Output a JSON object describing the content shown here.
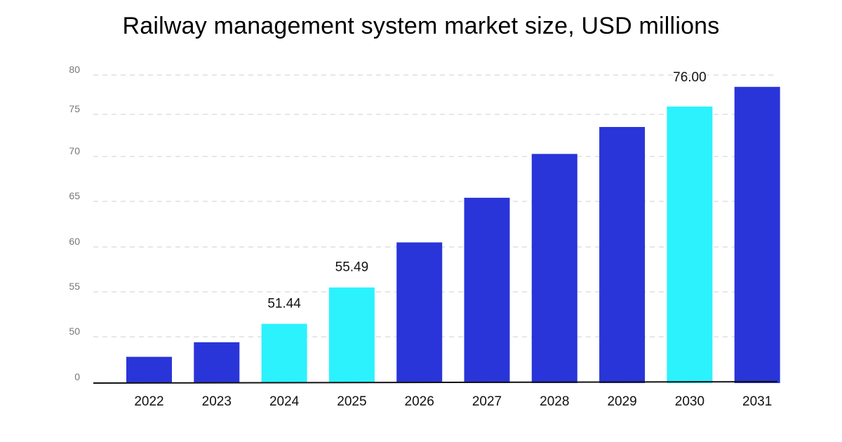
{
  "chart_data": {
    "type": "bar",
    "title": "Railway management system market size, USD millions",
    "categories": [
      "2022",
      "2023",
      "2024",
      "2025",
      "2026",
      "2027",
      "2028",
      "2029",
      "2030",
      "2031"
    ],
    "values": [
      47.8,
      49.4,
      51.44,
      55.49,
      60.5,
      65.4,
      70.3,
      73.5,
      76.0,
      78.5
    ],
    "data_labels": {
      "2024": "51.44",
      "2025": "55.49",
      "2030": "76.00"
    },
    "highlighted": [
      "2024",
      "2025",
      "2030"
    ],
    "y_ticks": [
      "0",
      "50",
      "55",
      "60",
      "65",
      "70",
      "75",
      "80"
    ],
    "ylim": [
      0,
      80
    ],
    "y_axis_break": "between 0 and 50",
    "grid": true,
    "colors": {
      "bar": "#2935d8",
      "highlight": "#2bf2fd",
      "grid": "#cfcfcf",
      "tick_label": "#777777"
    }
  }
}
